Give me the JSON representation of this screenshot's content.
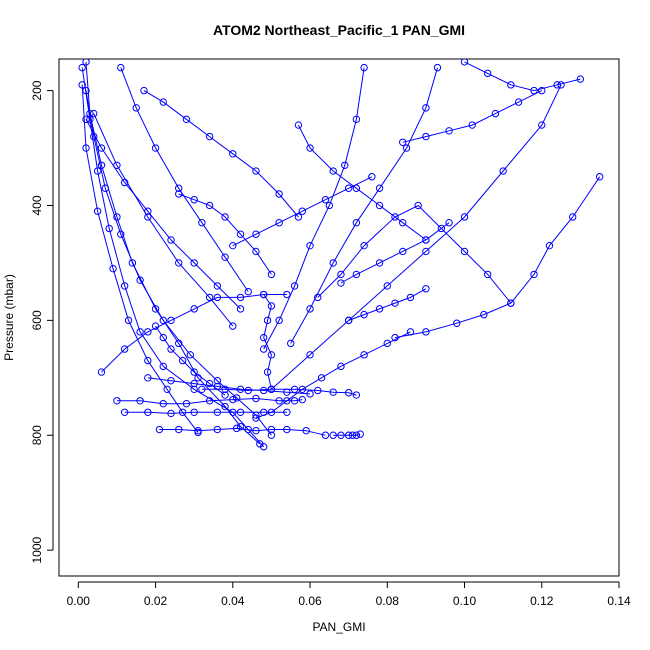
{
  "chart_data": {
    "type": "scatter",
    "title": "ATOM2 Northeast_Pacific_1 PAN_GMI",
    "xlabel": "PAN_GMI",
    "ylabel": "Pressure (mbar)",
    "xlim": [
      -0.005,
      0.14
    ],
    "ylim": [
      1045,
      145
    ],
    "y_reversed": true,
    "x_ticks": [
      0.0,
      0.02,
      0.04,
      0.06,
      0.08,
      0.1,
      0.12,
      0.14
    ],
    "x_tick_labels": [
      "0.00",
      "0.02",
      "0.04",
      "0.06",
      "0.08",
      "0.10",
      "0.12",
      "0.14"
    ],
    "y_ticks": [
      200,
      400,
      600,
      800,
      1000
    ],
    "y_tick_labels": [
      "200",
      "400",
      "600",
      "800",
      "1000"
    ],
    "marker": "open-circle",
    "color": "#0000ff",
    "grid": false,
    "series": [
      {
        "x": [
          0.048,
          0.044,
          0.04,
          0.03,
          0.022,
          0.016,
          0.012,
          0.008,
          0.005,
          0.003,
          0.001
        ],
        "y": [
          820,
          790,
          760,
          720,
          680,
          620,
          540,
          440,
          340,
          250,
          160
        ]
      },
      {
        "x": [
          0.047,
          0.042,
          0.038,
          0.031,
          0.026,
          0.02,
          0.014,
          0.01,
          0.006,
          0.003,
          0.002
        ],
        "y": [
          815,
          785,
          750,
          700,
          640,
          580,
          500,
          420,
          330,
          240,
          150
        ]
      },
      {
        "x": [
          0.031,
          0.027,
          0.023,
          0.018,
          0.013,
          0.009,
          0.005,
          0.002,
          0.001
        ],
        "y": [
          795,
          760,
          720,
          670,
          600,
          510,
          410,
          300,
          190
        ]
      },
      {
        "x": [
          0.05,
          0.046,
          0.041,
          0.036,
          0.029,
          0.022,
          0.016,
          0.011,
          0.007,
          0.004,
          0.002
        ],
        "y": [
          800,
          765,
          735,
          705,
          660,
          600,
          530,
          450,
          370,
          280,
          200
        ]
      },
      {
        "x": [
          0.01,
          0.016,
          0.022,
          0.028,
          0.034,
          0.04,
          0.046,
          0.052,
          0.056,
          0.058
        ],
        "y": [
          740,
          740,
          745,
          745,
          740,
          738,
          736,
          740,
          740,
          738
        ]
      },
      {
        "x": [
          0.012,
          0.018,
          0.024,
          0.03,
          0.036,
          0.042,
          0.048,
          0.054
        ],
        "y": [
          760,
          760,
          762,
          760,
          760,
          760,
          760,
          760
        ]
      },
      {
        "x": [
          0.018,
          0.024,
          0.03,
          0.036,
          0.042,
          0.048,
          0.054,
          0.06
        ],
        "y": [
          700,
          705,
          710,
          715,
          720,
          722,
          725,
          728
        ]
      },
      {
        "x": [
          0.021,
          0.026,
          0.031,
          0.036,
          0.041,
          0.046,
          0.05,
          0.054,
          0.059,
          0.064
        ],
        "y": [
          790,
          790,
          792,
          790,
          788,
          792,
          790,
          790,
          792,
          800
        ]
      },
      {
        "x": [
          0.032,
          0.038,
          0.044,
          0.05,
          0.056,
          0.062,
          0.066,
          0.07,
          0.072
        ],
        "y": [
          720,
          720,
          722,
          720,
          720,
          722,
          725,
          726,
          730
        ]
      },
      {
        "x": [
          0.048,
          0.05,
          0.049,
          0.048,
          0.05,
          0.049,
          0.05
        ],
        "y": [
          555,
          575,
          600,
          630,
          660,
          690,
          720
        ]
      },
      {
        "x": [
          0.066,
          0.068,
          0.07,
          0.071,
          0.072,
          0.073
        ],
        "y": [
          800,
          800,
          800,
          800,
          800,
          798
        ]
      },
      {
        "x": [
          0.086,
          0.08,
          0.074,
          0.068,
          0.063,
          0.058,
          0.054,
          0.05,
          0.046
        ],
        "y": [
          620,
          640,
          660,
          680,
          700,
          720,
          740,
          760,
          770
        ]
      },
      {
        "x": [
          0.125,
          0.12,
          0.11,
          0.1,
          0.09,
          0.08,
          0.07,
          0.06,
          0.05
        ],
        "y": [
          190,
          260,
          340,
          420,
          480,
          540,
          600,
          660,
          720
        ]
      },
      {
        "x": [
          0.135,
          0.128,
          0.122,
          0.118,
          0.112,
          0.105,
          0.098,
          0.09,
          0.082
        ],
        "y": [
          350,
          420,
          470,
          520,
          570,
          590,
          605,
          620,
          630
        ]
      },
      {
        "x": [
          0.112,
          0.106,
          0.1,
          0.094,
          0.088,
          0.082,
          0.074,
          0.068,
          0.062
        ],
        "y": [
          570,
          520,
          480,
          440,
          400,
          420,
          470,
          520,
          560
        ]
      },
      {
        "x": [
          0.093,
          0.09,
          0.085,
          0.078,
          0.072,
          0.066,
          0.06,
          0.055
        ],
        "y": [
          160,
          230,
          300,
          370,
          430,
          500,
          580,
          640
        ]
      },
      {
        "x": [
          0.074,
          0.072,
          0.069,
          0.065,
          0.06,
          0.056,
          0.052,
          0.048
        ],
        "y": [
          160,
          250,
          330,
          400,
          470,
          540,
          600,
          650
        ]
      },
      {
        "x": [
          0.057,
          0.06,
          0.066,
          0.072,
          0.078,
          0.084,
          0.09
        ],
        "y": [
          260,
          300,
          340,
          370,
          400,
          430,
          460
        ]
      },
      {
        "x": [
          0.017,
          0.022,
          0.028,
          0.034,
          0.04,
          0.046,
          0.052,
          0.057
        ],
        "y": [
          200,
          220,
          250,
          280,
          310,
          340,
          380,
          420
        ]
      },
      {
        "x": [
          0.011,
          0.015,
          0.02,
          0.026,
          0.032,
          0.038,
          0.044
        ],
        "y": [
          160,
          230,
          300,
          370,
          430,
          490,
          550
        ]
      },
      {
        "x": [
          0.002,
          0.006,
          0.012,
          0.018,
          0.024,
          0.03,
          0.036,
          0.042
        ],
        "y": [
          250,
          300,
          360,
          410,
          460,
          500,
          540,
          580
        ]
      },
      {
        "x": [
          0.004,
          0.01,
          0.018,
          0.026,
          0.034,
          0.04
        ],
        "y": [
          240,
          330,
          420,
          500,
          560,
          610
        ]
      },
      {
        "x": [
          0.006,
          0.012,
          0.018,
          0.024,
          0.03,
          0.036,
          0.042,
          0.048,
          0.054
        ],
        "y": [
          690,
          650,
          620,
          600,
          580,
          560,
          560,
          555,
          555
        ]
      },
      {
        "x": [
          0.068,
          0.072,
          0.078,
          0.084,
          0.09,
          0.096
        ],
        "y": [
          535,
          520,
          500,
          480,
          460,
          430
        ]
      },
      {
        "x": [
          0.1,
          0.106,
          0.112,
          0.118,
          0.124,
          0.13
        ],
        "y": [
          150,
          170,
          190,
          200,
          190,
          180
        ]
      },
      {
        "x": [
          0.084,
          0.09,
          0.096,
          0.102,
          0.108,
          0.114,
          0.12
        ],
        "y": [
          290,
          280,
          270,
          260,
          240,
          220,
          200
        ]
      },
      {
        "x": [
          0.04,
          0.046,
          0.052,
          0.058,
          0.064,
          0.07,
          0.076
        ],
        "y": [
          470,
          450,
          430,
          410,
          390,
          370,
          350
        ]
      },
      {
        "x": [
          0.026,
          0.03,
          0.034,
          0.038,
          0.042,
          0.046,
          0.05
        ],
        "y": [
          380,
          390,
          400,
          420,
          450,
          480,
          520
        ]
      },
      {
        "x": [
          0.07,
          0.074,
          0.078,
          0.082,
          0.086,
          0.09
        ],
        "y": [
          600,
          590,
          580,
          570,
          560,
          545
        ]
      },
      {
        "x": [
          0.038,
          0.034,
          0.03,
          0.027,
          0.024,
          0.022,
          0.02
        ],
        "y": [
          730,
          710,
          690,
          670,
          650,
          630,
          610
        ]
      }
    ]
  }
}
